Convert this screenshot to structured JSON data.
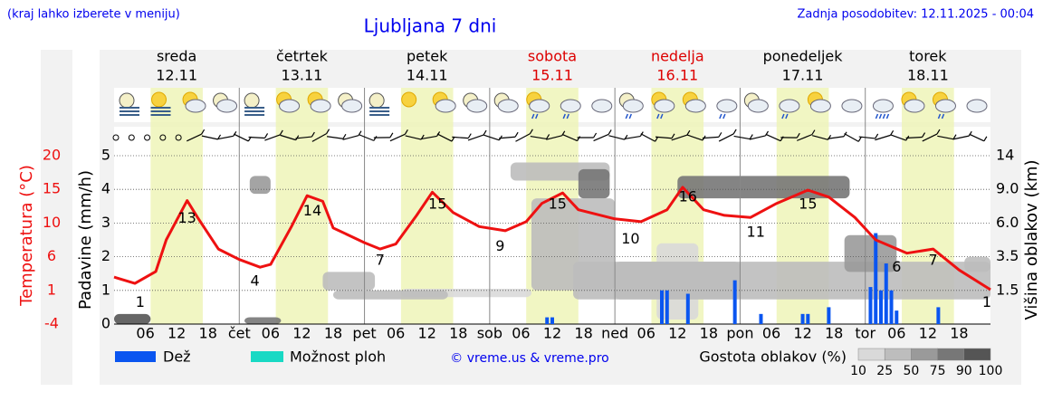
{
  "chart_data": {
    "type": "meteogram",
    "title": "Ljubljana 7 dni",
    "note": "(kraj lahko izberete v meniju)",
    "updated": "Zadnja posodobitev: 12.11.2025 - 00:04",
    "days": [
      {
        "name": "sreda",
        "date": "12.11",
        "color": "#000000"
      },
      {
        "name": "četrtek",
        "date": "13.11",
        "color": "#000000"
      },
      {
        "name": "petek",
        "date": "14.11",
        "color": "#000000"
      },
      {
        "name": "sobota",
        "date": "15.11",
        "color": "#dd0000"
      },
      {
        "name": "nedelja",
        "date": "16.11",
        "color": "#dd0000"
      },
      {
        "name": "ponedeljek",
        "date": "17.11",
        "color": "#000000"
      },
      {
        "name": "torek",
        "date": "18.11",
        "color": "#000000"
      }
    ],
    "daylight": [
      7,
      17
    ],
    "xlim": [
      0,
      168
    ],
    "xticks": [
      {
        "value": 6,
        "label": "06"
      },
      {
        "value": 12,
        "label": "12"
      },
      {
        "value": 18,
        "label": "18"
      },
      {
        "value": 24,
        "label": "čet"
      },
      {
        "value": 30,
        "label": "06"
      },
      {
        "value": 36,
        "label": "12"
      },
      {
        "value": 42,
        "label": "18"
      },
      {
        "value": 48,
        "label": "pet"
      },
      {
        "value": 54,
        "label": "06"
      },
      {
        "value": 60,
        "label": "12"
      },
      {
        "value": 66,
        "label": "18"
      },
      {
        "value": 72,
        "label": "sob"
      },
      {
        "value": 78,
        "label": "06"
      },
      {
        "value": 84,
        "label": "12"
      },
      {
        "value": 90,
        "label": "18"
      },
      {
        "value": 96,
        "label": "ned"
      },
      {
        "value": 102,
        "label": "06"
      },
      {
        "value": 108,
        "label": "12"
      },
      {
        "value": 114,
        "label": "18"
      },
      {
        "value": 120,
        "label": "pon"
      },
      {
        "value": 126,
        "label": "06"
      },
      {
        "value": 132,
        "label": "12"
      },
      {
        "value": 138,
        "label": "18"
      },
      {
        "value": 144,
        "label": "tor"
      },
      {
        "value": 150,
        "label": "06"
      },
      {
        "value": 156,
        "label": "12"
      },
      {
        "value": 162,
        "label": "18"
      }
    ],
    "ylabel": "Padavine (mm/h)",
    "ylim": [
      0,
      5
    ],
    "yticks": [
      0,
      1,
      2,
      3,
      4,
      5
    ],
    "grid": true,
    "temperature": {
      "label": "Temperatura (°C)",
      "color": "#ee1111",
      "lim": [
        -4,
        20
      ],
      "ticks": [
        -4,
        {
          "value": 0.8,
          "label": "1"
        },
        {
          "value": 5.6,
          "label": "6"
        },
        {
          "value": 10.4,
          "label": "10"
        },
        {
          "value": 15.2,
          "label": "15"
        },
        20
      ],
      "x": [
        0,
        4,
        8,
        10,
        14,
        16,
        20,
        24,
        28,
        30,
        34,
        37,
        40,
        42,
        48,
        51,
        54,
        58,
        61,
        65,
        70,
        75,
        79,
        82,
        86,
        89,
        96,
        101,
        106,
        109,
        113,
        117,
        122,
        127,
        133,
        137,
        142,
        146,
        152,
        157,
        162,
        168
      ],
      "values": [
        2.7,
        1.8,
        3.5,
        8,
        13.6,
        11.2,
        6.7,
        5.2,
        4.1,
        4.5,
        9.9,
        14.3,
        13.5,
        9.7,
        7.6,
        6.7,
        7.4,
        11.5,
        14.8,
        11.9,
        9.9,
        9.3,
        10.6,
        13.2,
        14.7,
        12.3,
        11,
        10.6,
        12.3,
        15.5,
        12.3,
        11.5,
        11.2,
        13.2,
        15.1,
        14.1,
        11.2,
        8,
        6.1,
        6.7,
        3.7,
        0.9
      ],
      "labels": {
        "x": [
          5,
          14,
          27,
          38,
          51,
          62,
          74,
          85,
          99,
          110,
          123,
          133,
          150,
          157,
          168
        ],
        "values": [
          1,
          13,
          4,
          14,
          7,
          15,
          9,
          15,
          10,
          16,
          11,
          15,
          6,
          7,
          1
        ]
      }
    },
    "y2label": "Višina oblakov (km)",
    "y2lim": [
      0,
      14
    ],
    "y2scale": "piecewise",
    "y2ticks": [
      1.5,
      3.5,
      {
        "value": 6,
        "label": "6.0"
      },
      {
        "value": 9,
        "label": "9.0"
      },
      14
    ],
    "clouds": [
      {
        "start": 55,
        "end": 80,
        "bottom": 1.2,
        "top": 1.6,
        "density": 20
      },
      {
        "start": 104,
        "end": 112,
        "bottom": 0.2,
        "top": 4.5,
        "density": 25
      },
      {
        "start": 163,
        "end": 168,
        "bottom": 2.6,
        "top": 3.5,
        "density": 30
      },
      {
        "start": 40,
        "end": 50,
        "bottom": 1.5,
        "top": 2.6,
        "density": 30
      },
      {
        "start": 96,
        "end": 168,
        "bottom": 1.1,
        "top": 3.2,
        "density": 40
      },
      {
        "start": 80,
        "end": 96,
        "bottom": 1.5,
        "top": 8.2,
        "density": 40
      },
      {
        "start": 76,
        "end": 95,
        "bottom": 10.3,
        "top": 13,
        "density": 40
      },
      {
        "start": 42,
        "end": 64,
        "bottom": 1.1,
        "top": 1.5,
        "density": 40
      },
      {
        "start": 88,
        "end": 120,
        "bottom": 1.1,
        "top": 3.2,
        "density": 50
      },
      {
        "start": 140,
        "end": 150,
        "bottom": 2.6,
        "top": 5.1,
        "density": 65
      },
      {
        "start": 26,
        "end": 30,
        "bottom": 8.6,
        "top": 11,
        "density": 75
      },
      {
        "start": 25,
        "end": 32,
        "bottom": 0,
        "top": 0.3,
        "density": 85
      },
      {
        "start": 89,
        "end": 95,
        "bottom": 8.2,
        "top": 12,
        "density": 85
      },
      {
        "start": 108,
        "end": 141,
        "bottom": 8.2,
        "top": 11,
        "density": 90
      },
      {
        "start": 0,
        "end": 7,
        "bottom": 0,
        "top": 0.45,
        "density": 95
      }
    ],
    "precipitation": {
      "name": "Dež",
      "color": "#0a55f0",
      "x": [
        83,
        84,
        105,
        106,
        110,
        119,
        124,
        132,
        133,
        137,
        145,
        146,
        147,
        148,
        149,
        150,
        158
      ],
      "values": [
        0.2,
        0.2,
        1.0,
        1.0,
        0.9,
        1.3,
        0.3,
        0.3,
        0.3,
        0.5,
        1.1,
        2.7,
        1.0,
        1.8,
        1.0,
        0.4,
        0.5
      ]
    },
    "showers": {
      "name": "Možnost ploh",
      "color": "#19d9c4"
    },
    "credit": "© vreme.us & vreme.pro",
    "density_scale": {
      "title": "Gostota oblakov (%)",
      "ticks": [
        10,
        25,
        50,
        75,
        90,
        100
      ],
      "colors": [
        "#d9d9d9",
        "#bdbdbd",
        "#9a9a9a",
        "#777777",
        "#555555"
      ]
    }
  }
}
